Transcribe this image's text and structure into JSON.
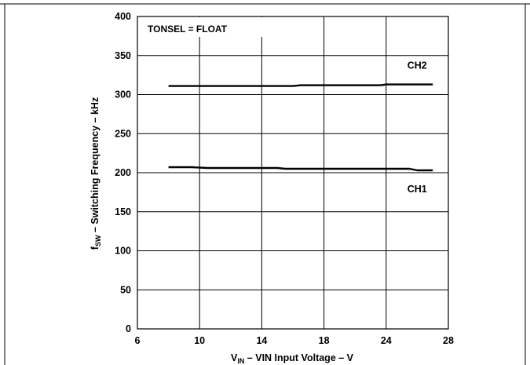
{
  "chart_data": {
    "type": "line",
    "annotation": "TONSEL = FLOAT",
    "xlabel": {
      "main": "V",
      "sub": "IN",
      "rest": " – VIN Input Voltage – V"
    },
    "ylabel": {
      "main": "f",
      "sub": "SW",
      "rest": " – Switching Frequency  – kHz"
    },
    "xlim": [
      6,
      28
    ],
    "ylim": [
      0,
      400
    ],
    "xticks": [
      6,
      10,
      14,
      18,
      24,
      28
    ],
    "yticks": [
      0,
      50,
      100,
      150,
      200,
      250,
      300,
      350,
      400
    ],
    "grid": true,
    "series": [
      {
        "name": "CH2",
        "x": [
          8,
          10,
          12,
          14,
          16,
          16.5,
          18,
          20,
          22,
          23.5,
          24,
          26,
          27
        ],
        "y": [
          311,
          311,
          311,
          311,
          311,
          312,
          312,
          312,
          312,
          312,
          313,
          313,
          313
        ]
      },
      {
        "name": "CH1",
        "x": [
          8,
          9.5,
          10.5,
          12,
          14,
          15,
          15.5,
          18,
          20,
          22,
          24,
          25.5,
          26,
          27
        ],
        "y": [
          207,
          207,
          206,
          206,
          206,
          206,
          205,
          205,
          205,
          205,
          205,
          205,
          203,
          203
        ]
      }
    ],
    "colors": {
      "line": "#000000",
      "grid": "#000000"
    }
  }
}
